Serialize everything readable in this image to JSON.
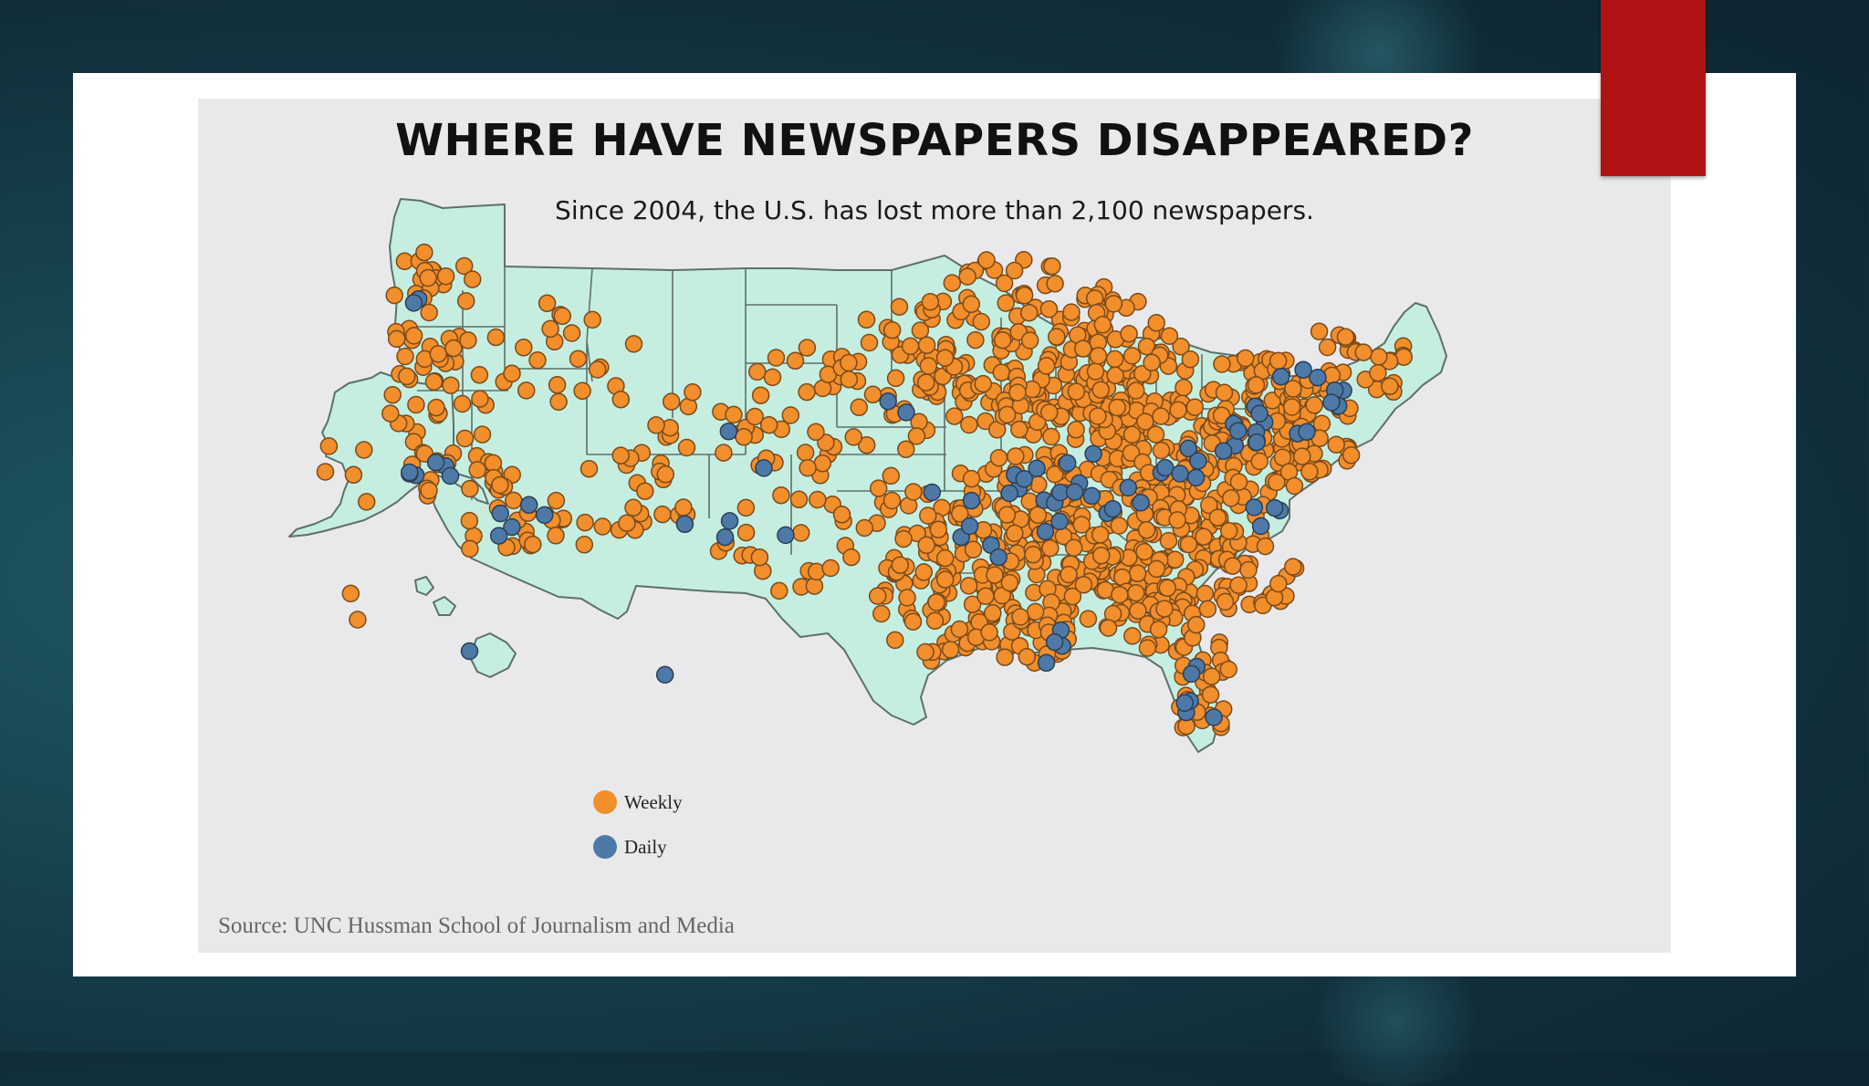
{
  "map": {
    "title": "WHERE HAVE NEWSPAPERS DISAPPEARED?",
    "subtitle": "Since 2004, the U.S. has lost more than 2,100 newspapers.",
    "source": "Source: UNC Hussman School of Journalism and Media",
    "legend": [
      {
        "label": "Weekly",
        "color": "#f28e2b"
      },
      {
        "label": "Daily",
        "color": "#4e79a7"
      }
    ],
    "land_color": "#c5eee0",
    "border_color": "#5f6f6a",
    "accent_color": "#b01313"
  }
}
